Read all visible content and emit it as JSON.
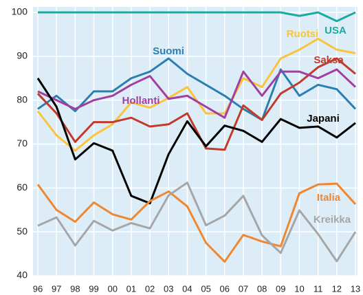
{
  "chart_data": {
    "type": "line",
    "categories": [
      "96",
      "97",
      "98",
      "99",
      "00",
      "01",
      "02",
      "03",
      "04",
      "05",
      "06",
      "07",
      "08",
      "09",
      "10",
      "11",
      "12",
      "13"
    ],
    "ylim": [
      40,
      100
    ],
    "yticks": [
      40,
      50,
      60,
      70,
      80,
      90,
      100
    ],
    "grid": true,
    "series": [
      {
        "name": "USA",
        "color": "#1aaba0",
        "values": [
          100,
          100,
          100,
          100,
          100,
          100,
          100,
          100,
          100,
          100,
          100,
          100,
          100,
          100,
          99.2,
          100,
          98,
          100
        ]
      },
      {
        "name": "Ruotsi",
        "color": "#f9c33a",
        "values": [
          77.5,
          72,
          68.5,
          72,
          74.5,
          79.5,
          78.3,
          80.5,
          83,
          77,
          77,
          85,
          83,
          89.5,
          91.5,
          94,
          91.5,
          90.7
        ]
      },
      {
        "name": "Suomi",
        "color": "#2a7fb0",
        "values": [
          78,
          81,
          77.5,
          82,
          82,
          85,
          86.5,
          89.5,
          86,
          83.5,
          81,
          78,
          75.5,
          87,
          81,
          83.5,
          82.5,
          78
        ]
      },
      {
        "name": "Saksa",
        "color": "#c23a2b",
        "values": [
          81.5,
          77,
          70.5,
          75,
          75,
          76,
          74,
          74.5,
          77,
          69,
          68.7,
          78.8,
          75.5,
          81.5,
          84,
          87.5,
          89.5,
          86
        ]
      },
      {
        "name": "Hollanti",
        "color": "#a23ea0",
        "values": [
          82,
          80,
          78,
          80,
          81,
          83.5,
          85.5,
          80.3,
          81,
          78.5,
          76,
          86.5,
          81,
          86.5,
          86.5,
          85,
          87,
          83
        ]
      },
      {
        "name": "Japani",
        "color": "#000000",
        "values": [
          85,
          78.5,
          66.5,
          70.2,
          68.5,
          58.2,
          56.5,
          67.7,
          75.2,
          69.5,
          74.2,
          73,
          70.5,
          75.7,
          73.7,
          74,
          71.5,
          74.8
        ]
      },
      {
        "name": "Italia",
        "color": "#f0862e",
        "values": [
          60.8,
          55,
          52.3,
          56.7,
          54,
          52.8,
          57,
          59.2,
          55.8,
          47.5,
          43.2,
          49.3,
          47.8,
          46.7,
          58.8,
          60.8,
          61,
          56.3
        ]
      },
      {
        "name": "Kreikka",
        "color": "#a6a6a6",
        "values": [
          51.4,
          53.3,
          46.9,
          52.5,
          50.3,
          52,
          50.8,
          58.3,
          61.2,
          51.5,
          53.7,
          58.2,
          49.2,
          45.2,
          54.9,
          49.5,
          43.3,
          50
        ]
      }
    ]
  }
}
